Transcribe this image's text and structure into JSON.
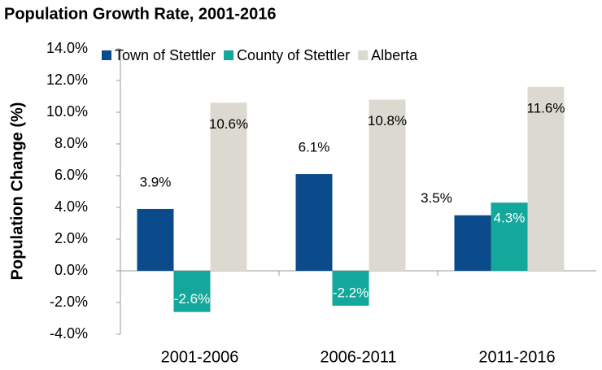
{
  "chart_data": {
    "type": "bar",
    "title": "Population Growth Rate, 2001-2016",
    "y_label": "Population Change (%)",
    "categories": [
      "2001-2006",
      "2006-2011",
      "2011-2016"
    ],
    "series": [
      {
        "name": "Town of Stettler",
        "color": "#0b4a8b",
        "values": [
          3.9,
          6.1,
          3.5
        ],
        "value_labels": [
          "3.9%",
          "6.1%",
          "3.5%"
        ]
      },
      {
        "name": "County of Stettler",
        "color": "#13a89b",
        "values": [
          -2.6,
          -2.2,
          4.3
        ],
        "value_labels": [
          "-2.6%",
          "-2.2%",
          "4.3%"
        ]
      },
      {
        "name": "Alberta",
        "color": "#dcdad0",
        "values": [
          10.6,
          10.8,
          11.6
        ],
        "value_labels": [
          "10.6%",
          "10.8%",
          "11.6%"
        ]
      }
    ],
    "ylim": [
      -4,
      14
    ],
    "yticks": [
      {
        "value": -4,
        "label": "-4.0%"
      },
      {
        "value": -2,
        "label": "-2.0%"
      },
      {
        "value": 0,
        "label": "0.0%"
      },
      {
        "value": 2,
        "label": "2.0%"
      },
      {
        "value": 4,
        "label": "4.0%"
      },
      {
        "value": 6,
        "label": "6.0%"
      },
      {
        "value": 8,
        "label": "8.0%"
      },
      {
        "value": 10,
        "label": "10.0%"
      },
      {
        "value": 12,
        "label": "12.0%"
      },
      {
        "value": 14,
        "label": "14.0%"
      }
    ],
    "legend": "top"
  }
}
